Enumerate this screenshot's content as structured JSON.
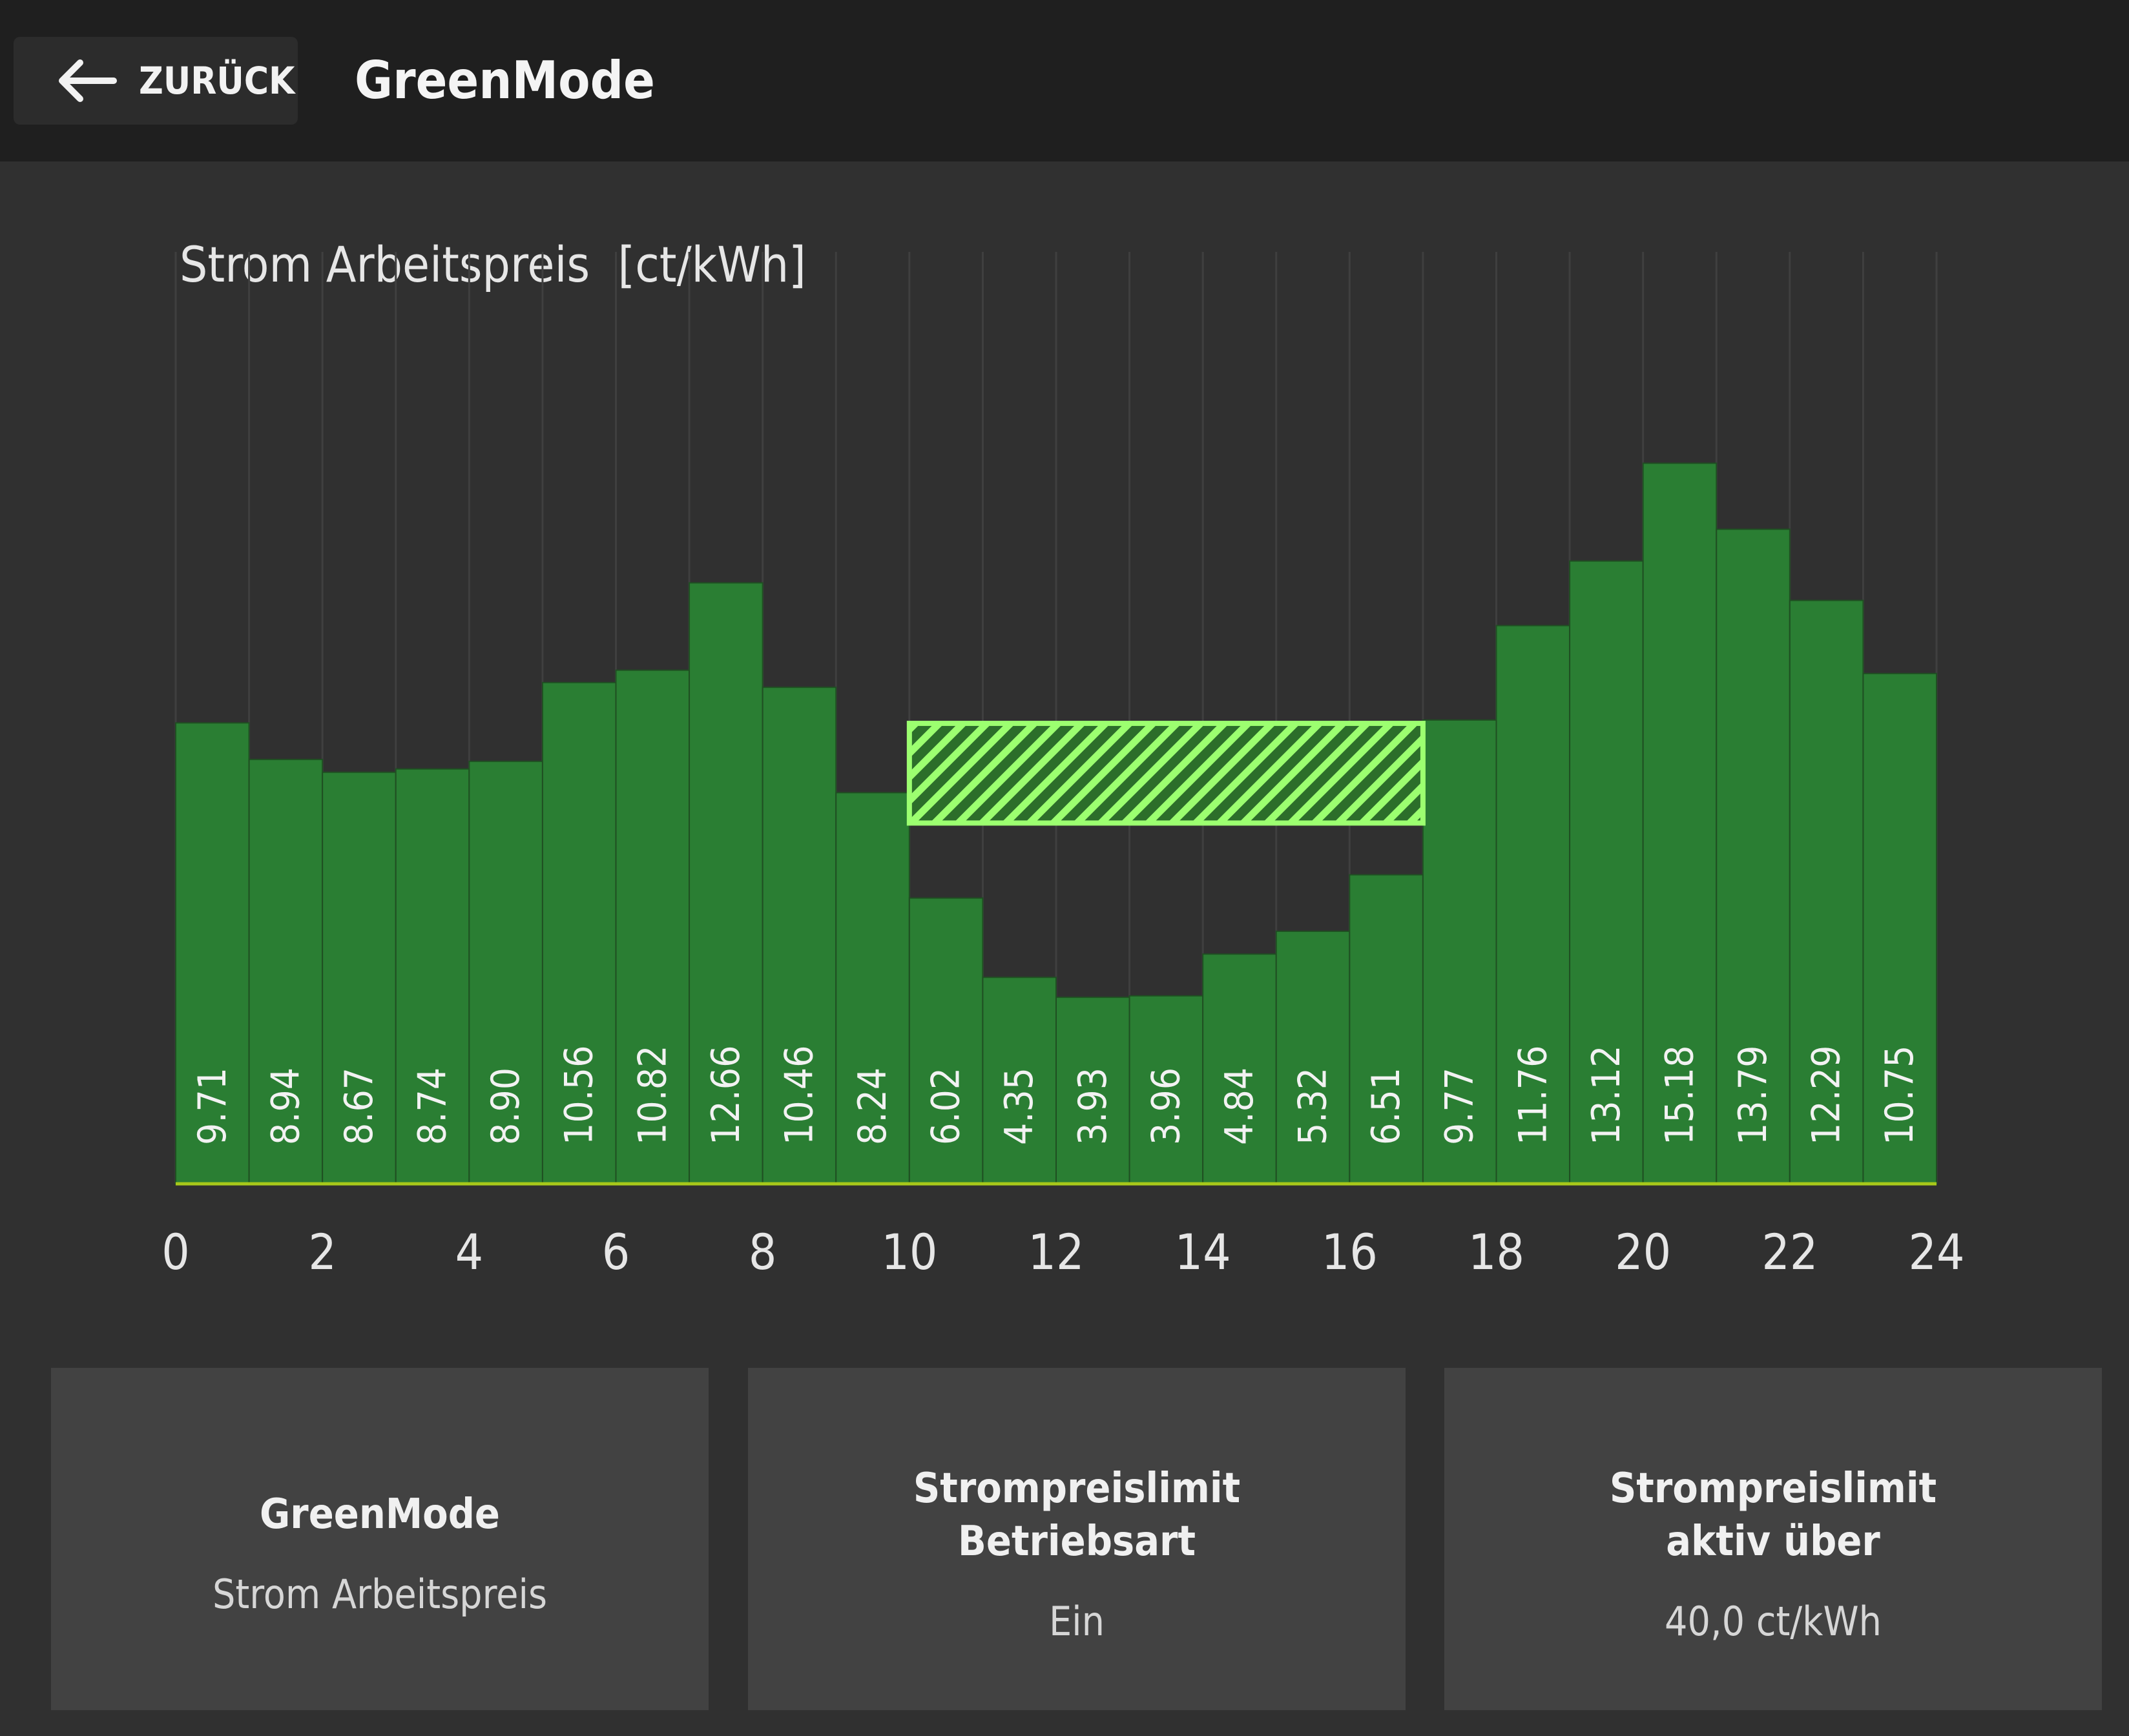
{
  "header": {
    "back_label": "ZURÜCK",
    "title": "GreenMode"
  },
  "chart_data": {
    "type": "bar",
    "title": "Strom Arbeitspreis  [ct/kWh]",
    "x": [
      0,
      1,
      2,
      3,
      4,
      5,
      6,
      7,
      8,
      9,
      10,
      11,
      12,
      13,
      14,
      15,
      16,
      17,
      18,
      19,
      20,
      21,
      22,
      23
    ],
    "values": [
      9.71,
      8.94,
      8.67,
      8.74,
      8.9,
      10.56,
      10.82,
      12.66,
      10.46,
      8.24,
      6.02,
      4.35,
      3.93,
      3.96,
      4.84,
      5.32,
      6.51,
      9.77,
      11.76,
      13.12,
      15.18,
      13.79,
      12.29,
      10.75
    ],
    "value_labels": [
      "9.71",
      "8.94",
      "8.67",
      "8.74",
      "8.90",
      "10.56",
      "10.82",
      "12.66",
      "10.46",
      "8.24",
      "6.02",
      "4.35",
      "3.93",
      "3.96",
      "4.84",
      "5.32",
      "6.51",
      "9.77",
      "11.76",
      "13.12",
      "15.18",
      "13.79",
      "12.29",
      "10.75"
    ],
    "xticks": [
      "0",
      "2",
      "4",
      "6",
      "8",
      "10",
      "12",
      "14",
      "16",
      "18",
      "20",
      "22",
      "24"
    ],
    "xlim": [
      0,
      24
    ],
    "ylim": [
      0,
      20
    ],
    "grid": "vertical",
    "highlight_window": {
      "start": 10,
      "end": 17,
      "y_low": 7.6,
      "y_high": 9.7
    },
    "colors": {
      "bar": "#2a7e33",
      "highlight": "#9cff70",
      "baseline": "#a8c81a"
    }
  },
  "cards": [
    {
      "title": "GreenMode",
      "value": "Strom Arbeitspreis"
    },
    {
      "title": "Strompreislimit\nBetriebsart",
      "value": "Ein"
    },
    {
      "title": "Strompreislimit\naktiv über",
      "value": "40,0 ct/kWh"
    }
  ]
}
